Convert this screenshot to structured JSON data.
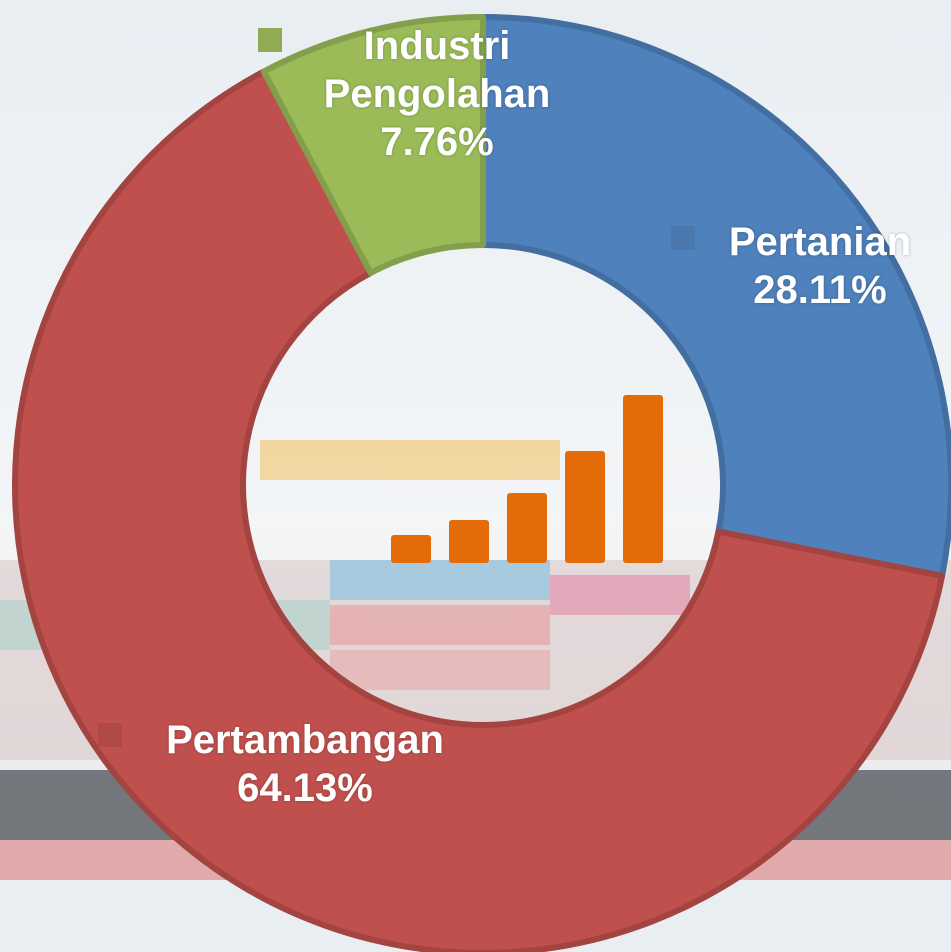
{
  "chart_data": {
    "type": "donut",
    "categories": [
      "Pertanian",
      "Pertambangan",
      "Industri Pengolahan"
    ],
    "values": [
      28.11,
      64.13,
      7.76
    ],
    "value_labels": [
      "28.11%",
      "64.13%",
      "7.76%"
    ],
    "colors": [
      "#4f81bd",
      "#c0504d",
      "#9bbb59"
    ]
  }
}
